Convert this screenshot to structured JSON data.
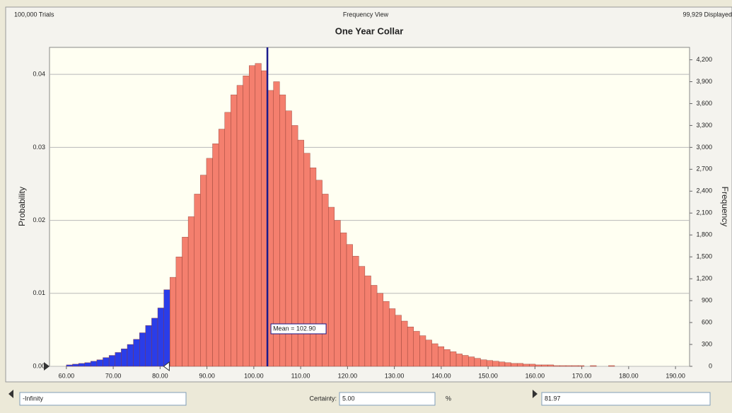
{
  "header": {
    "trials": "100,000 Trials",
    "view": "Frequency View",
    "displayed": "99,929 Displayed"
  },
  "chart_data": {
    "type": "histogram",
    "title": "One Year Collar",
    "ylabel": "Probability",
    "y2label": "Frequency",
    "bins": [
      60,
      61.3,
      62.6,
      63.9,
      65.2,
      66.5,
      67.8,
      69.1,
      70.4,
      71.7,
      73,
      74.3,
      75.6,
      76.9,
      78.2,
      79.5,
      80.8,
      82.1,
      83.4,
      84.7,
      86,
      87.3,
      88.6,
      89.9,
      91.2,
      92.5,
      93.8,
      95.1,
      96.4,
      97.7,
      99,
      100.3,
      101.6,
      102.9,
      104.2,
      105.5,
      106.8,
      108.1,
      109.4,
      110.7,
      112,
      113.3,
      114.6,
      115.9,
      117.2,
      118.5,
      119.8,
      121.1,
      122.4,
      123.7,
      125,
      126.3,
      127.6,
      128.9,
      130.2,
      131.5,
      132.8,
      134.1,
      135.4,
      136.7,
      138,
      139.3,
      140.6,
      141.9,
      143.2,
      144.5,
      145.8,
      147.1,
      148.4,
      149.7,
      151,
      152.3,
      153.6,
      154.9,
      156.2,
      157.5,
      158.8,
      160.1,
      161.4,
      162.7,
      164,
      165.3,
      166.6,
      167.9,
      169.2,
      170.5,
      171.8,
      173.1,
      174.4,
      175.7,
      177
    ],
    "values": [
      0.0002,
      0.0003,
      0.0004,
      0.0005,
      0.0007,
      0.0009,
      0.0012,
      0.0015,
      0.0019,
      0.0024,
      0.003,
      0.0037,
      0.0046,
      0.0056,
      0.0066,
      0.008,
      0.0105,
      0.0122,
      0.015,
      0.0177,
      0.0205,
      0.0236,
      0.0262,
      0.0285,
      0.0305,
      0.0325,
      0.0348,
      0.0372,
      0.0385,
      0.0398,
      0.0412,
      0.0415,
      0.0405,
      0.0378,
      0.039,
      0.0372,
      0.035,
      0.033,
      0.031,
      0.0292,
      0.0272,
      0.0255,
      0.0236,
      0.0218,
      0.02,
      0.0183,
      0.0167,
      0.0151,
      0.0137,
      0.0124,
      0.0111,
      0.01,
      0.0089,
      0.0079,
      0.007,
      0.0062,
      0.0054,
      0.0048,
      0.0042,
      0.0036,
      0.0031,
      0.0027,
      0.0023,
      0.002,
      0.0017,
      0.0015,
      0.0013,
      0.0011,
      0.0009,
      0.0008,
      0.0007,
      0.0006,
      0.0005,
      0.0004,
      0.0004,
      0.0003,
      0.0003,
      0.0002,
      0.0002,
      0.0002,
      0.0001,
      0.0001,
      0.0001,
      0.0001,
      0.0001,
      0,
      0.0001,
      0,
      0,
      0.0001
    ],
    "color": "#f47f6e",
    "highlight_color": "#2a3de8",
    "xlim": [
      56.4,
      193
    ],
    "ylim": [
      0,
      0.0437
    ],
    "y2lim": [
      0,
      4370
    ],
    "xticks": [
      {
        "value": 60,
        "label": "60.00"
      },
      {
        "value": 70,
        "label": "70.00"
      },
      {
        "value": 80,
        "label": "80.00"
      },
      {
        "value": 90,
        "label": "90.00"
      },
      {
        "value": 100,
        "label": "100.00"
      },
      {
        "value": 110,
        "label": "110.00"
      },
      {
        "value": 120,
        "label": "120.00"
      },
      {
        "value": 130,
        "label": "130.00"
      },
      {
        "value": 140,
        "label": "140.00"
      },
      {
        "value": 150,
        "label": "150.00"
      },
      {
        "value": 160,
        "label": "160.00"
      },
      {
        "value": 170,
        "label": "170.00"
      },
      {
        "value": 180,
        "label": "180.00"
      },
      {
        "value": 190,
        "label": "190.00"
      }
    ],
    "yticks": [
      {
        "value": 0,
        "label": "0.00"
      },
      0.01,
      0.02,
      0.03,
      0.04
    ],
    "y2ticks": [
      0,
      300,
      600,
      900,
      {
        "value": 1200,
        "label": "1,200"
      },
      {
        "value": 1500,
        "label": "1,500"
      },
      {
        "value": 1800,
        "label": "1,800"
      },
      {
        "value": 2100,
        "label": "2,100"
      },
      {
        "value": 2400,
        "label": "2,400"
      },
      {
        "value": 2700,
        "label": "2,700"
      },
      {
        "value": 3000,
        "label": "3,000"
      },
      {
        "value": 3300,
        "label": "3,300"
      },
      {
        "value": 3600,
        "label": "3,600"
      },
      {
        "value": 3900,
        "label": "3,900"
      },
      {
        "value": 4200,
        "label": "4,200"
      }
    ],
    "grid": true,
    "mean": 102.9,
    "mean_label": "Mean = 102.90"
  },
  "footer": {
    "lower": "-Infinity",
    "certainty_label": "Certainty:",
    "certainty": "5.00",
    "unit": "%",
    "upper": 81.97
  }
}
